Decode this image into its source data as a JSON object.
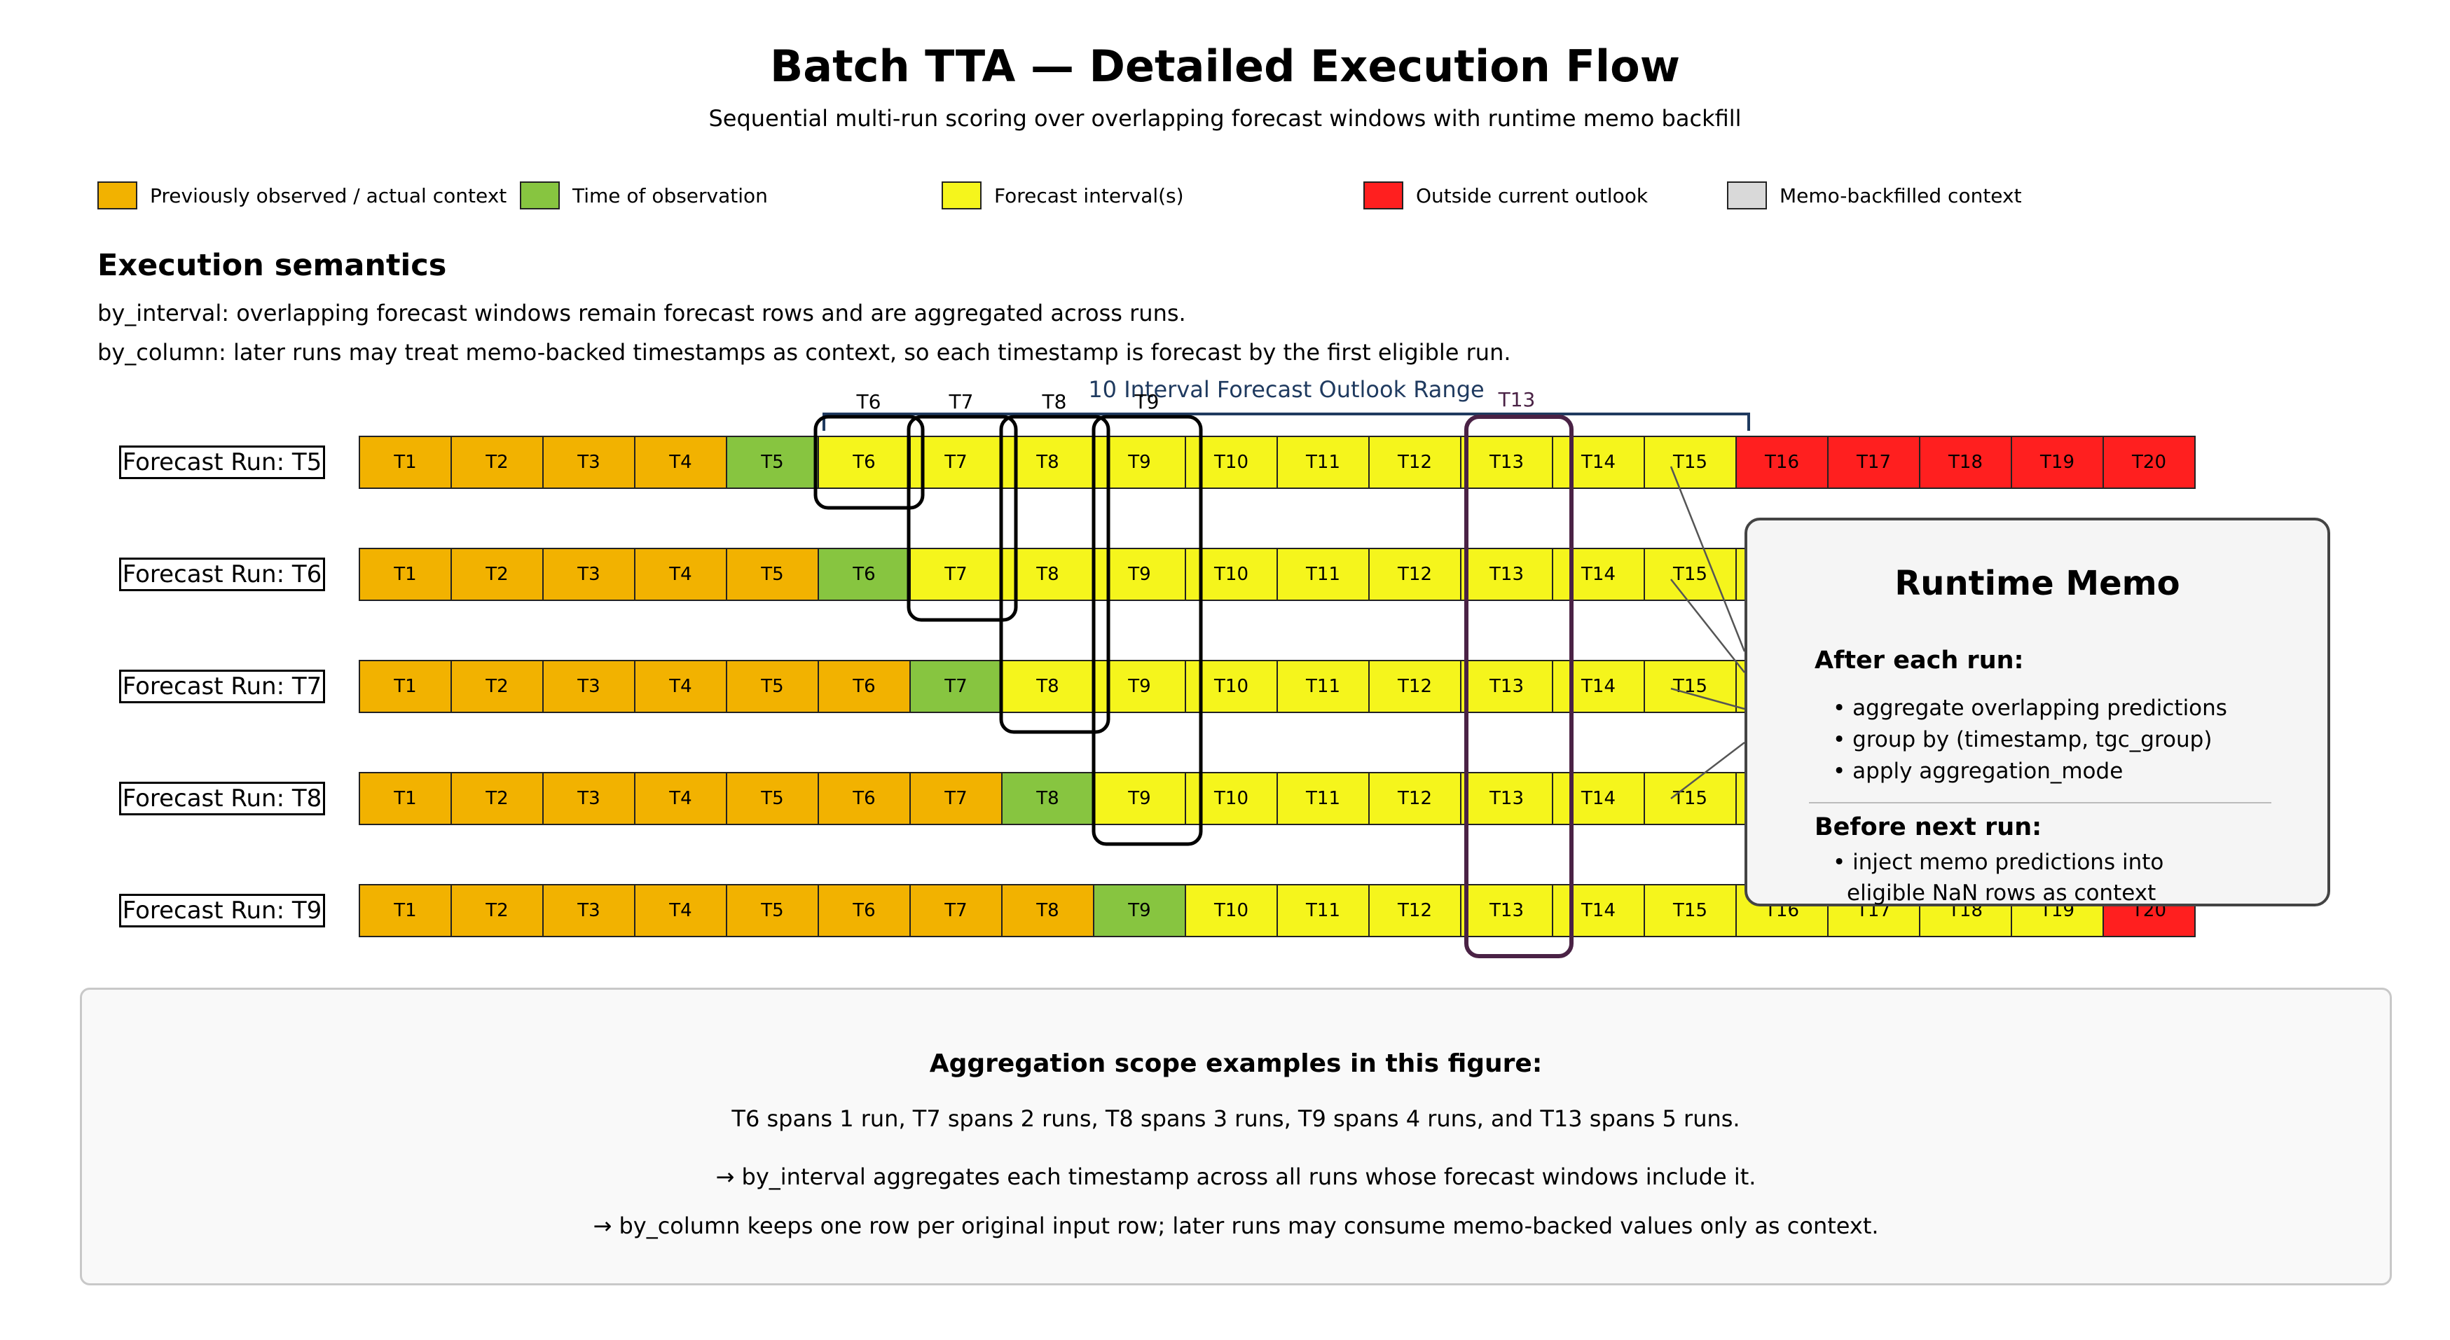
{
  "title": "Batch TTA — Detailed Execution Flow",
  "subtitle": "Sequential multi-run scoring over overlapping forecast windows with runtime memo backfill",
  "colors": {
    "context": "#f2b200",
    "observation": "#87c540",
    "forecast": "#f5f51c",
    "outside": "#ff1f1f",
    "memo": "#d9d9d9",
    "bracket": "#1f3a5f",
    "highlight": "#4a2245"
  },
  "legend": [
    {
      "label": "Previously observed / actual context",
      "color": "#f2b200"
    },
    {
      "label": "Time of observation",
      "color": "#87c540"
    },
    {
      "label": "Forecast interval(s)",
      "color": "#f5f51c"
    },
    {
      "label": "Outside current outlook",
      "color": "#ff1f1f"
    },
    {
      "label": "Memo-backfilled context",
      "color": "#d9d9d9"
    }
  ],
  "semantics": {
    "title": "Execution semantics",
    "line1": "by_interval: overlapping forecast windows remain forecast rows and are aggregated across runs.",
    "line2": "by_column: later runs may treat memo-backed timestamps as context, so each timestamp is forecast by the first eligible run."
  },
  "outlook_label": "10 Interval Forecast Outlook Range",
  "scope_labels": [
    "T6",
    "T7",
    "T8",
    "T9"
  ],
  "highlight_label": "T13",
  "timestamps": [
    "T1",
    "T2",
    "T3",
    "T4",
    "T5",
    "T6",
    "T7",
    "T8",
    "T9",
    "T10",
    "T11",
    "T12",
    "T13",
    "T14",
    "T15",
    "T16",
    "T17",
    "T18",
    "T19",
    "T20"
  ],
  "runs": [
    {
      "label": "Forecast Run: T5",
      "observation_index": 5,
      "outlook_end": 15
    },
    {
      "label": "Forecast Run: T6",
      "observation_index": 6,
      "outlook_end": 16
    },
    {
      "label": "Forecast Run: T7",
      "observation_index": 7,
      "outlook_end": 17
    },
    {
      "label": "Forecast Run: T8",
      "observation_index": 8,
      "outlook_end": 18
    },
    {
      "label": "Forecast Run: T9",
      "observation_index": 9,
      "outlook_end": 19
    }
  ],
  "memo": {
    "title": "Runtime Memo",
    "after_heading": "After each run:",
    "after_items": [
      "• aggregate overlapping predictions",
      "• group by (timestamp, tgc_group)",
      "• apply aggregation_mode"
    ],
    "before_heading": "Before next run:",
    "before_items": [
      "• inject memo predictions into",
      "eligible NaN rows as context"
    ]
  },
  "aggregation": {
    "title": "Aggregation scope examples in this figure:",
    "line1": "T6 spans 1 run, T7 spans 2 runs, T8 spans 3 runs, T9 spans 4 runs, and T13 spans 5 runs.",
    "line2": "→ by_interval aggregates each timestamp across all runs whose forecast windows include it.",
    "line3": "→ by_column keeps one row per original input row; later runs may consume memo-backed values only as context."
  }
}
